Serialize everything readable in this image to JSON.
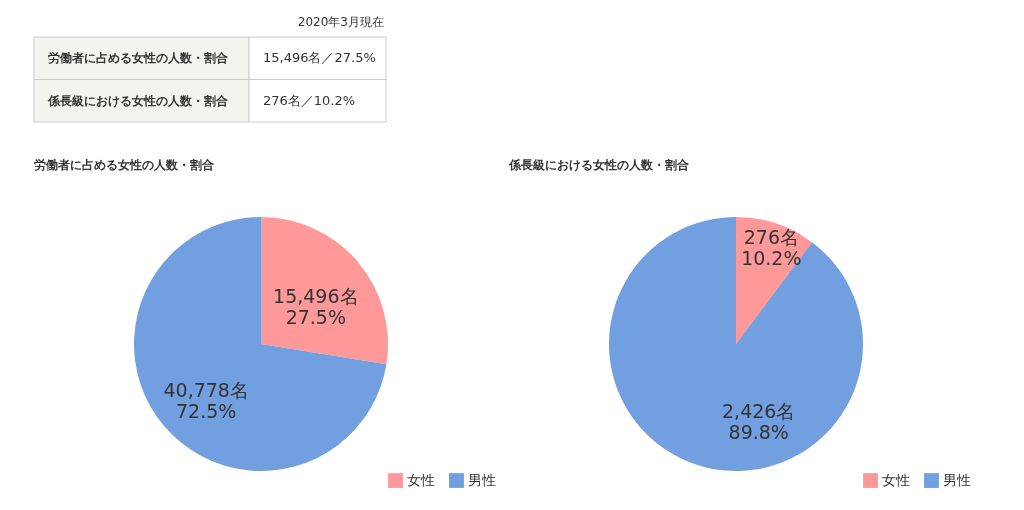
{
  "chart_data": [
    {
      "type": "other",
      "annotations": [
        "2020年3月現在",
        "労働者に占める女性の人数・割合",
        "15,496名／27.5%",
        "係長級における女性の人数・割合",
        "276名／10.2%"
      ]
    },
    {
      "type": "pie",
      "title": "労働者に占める女性の人数・割合",
      "categories": [
        "女性",
        "男性"
      ],
      "values": [
        15496,
        40778
      ],
      "colors": [
        "#ff9999",
        "#729fdf"
      ],
      "value_labels": [
        "15,496名\n27.5%",
        "40,778名\n72.5%"
      ],
      "legend": "bottom right"
    },
    {
      "type": "pie",
      "title": "係長級における女性の人数・割合",
      "categories": [
        "女性",
        "男性"
      ],
      "values": [
        276,
        2426
      ],
      "colors": [
        "#ff9999",
        "#729fdf"
      ],
      "value_labels": [
        "276名\n10.2%",
        "2,426名\n89.8%"
      ],
      "legend": "bottom right"
    }
  ]
}
